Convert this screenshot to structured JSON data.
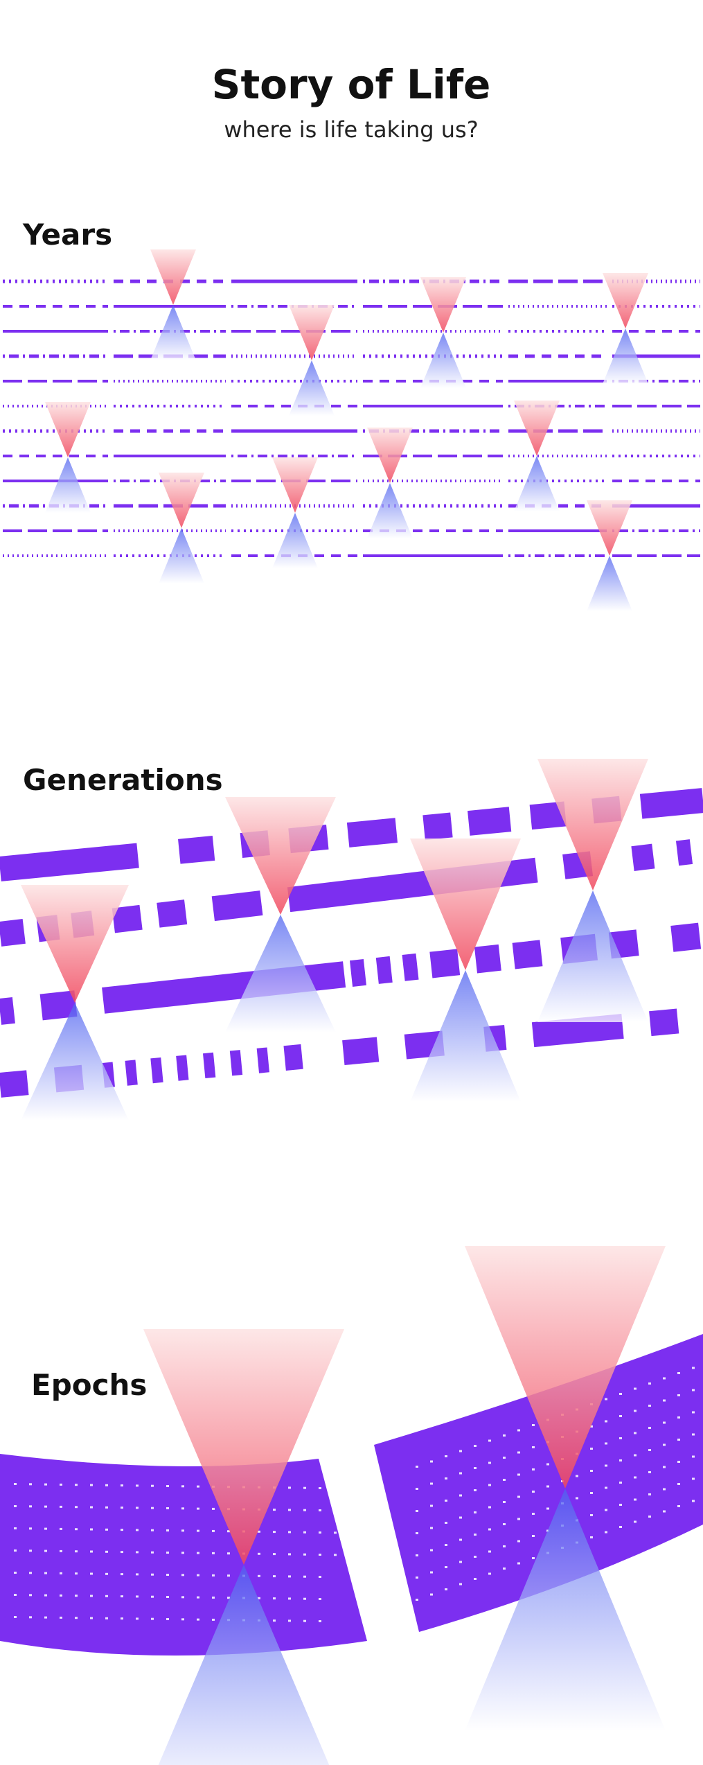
{
  "header": {
    "title": "Story of Life",
    "subtitle": "where is life taking us?"
  },
  "sections": {
    "years": {
      "label": "Years"
    },
    "generations": {
      "label": "Generations"
    },
    "epochs": {
      "label": "Epochs"
    }
  },
  "colors": {
    "band": "#7c2ff0",
    "band_light": "#9b4ff7",
    "hourglass_top": "#f25a6c",
    "hourglass_top_fade": "#fde3e3",
    "hourglass_bottom": "#5b6cf2",
    "hourglass_bottom_fade": "#ffffff",
    "text": "#111111",
    "background": "#ffffff"
  },
  "icons": [
    "hourglass-icon"
  ]
}
